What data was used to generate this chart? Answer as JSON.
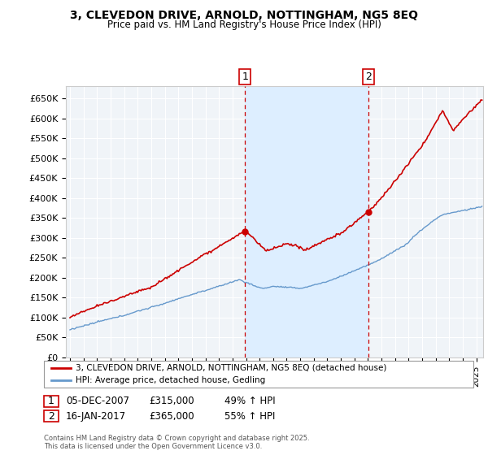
{
  "title": "3, CLEVEDON DRIVE, ARNOLD, NOTTINGHAM, NG5 8EQ",
  "subtitle": "Price paid vs. HM Land Registry's House Price Index (HPI)",
  "ylim": [
    0,
    680000
  ],
  "yticks": [
    0,
    50000,
    100000,
    150000,
    200000,
    250000,
    300000,
    350000,
    400000,
    450000,
    500000,
    550000,
    600000,
    650000
  ],
  "ytick_labels": [
    "£0",
    "£50K",
    "£100K",
    "£150K",
    "£200K",
    "£250K",
    "£300K",
    "£350K",
    "£400K",
    "£450K",
    "£500K",
    "£550K",
    "£600K",
    "£650K"
  ],
  "sale1_date": 2007.92,
  "sale1_price": 315000,
  "sale1_text": "05-DEC-2007",
  "sale1_amount": "£315,000",
  "sale1_pct": "49% ↑ HPI",
  "sale2_date": 2017.04,
  "sale2_price": 365000,
  "sale2_text": "16-JAN-2017",
  "sale2_amount": "£365,000",
  "sale2_pct": "55% ↑ HPI",
  "line1_color": "#cc0000",
  "line2_color": "#6699cc",
  "shade_color": "#ddeeff",
  "marker_box_color": "#cc0000",
  "bg_color": "#f0f4f8",
  "legend1": "3, CLEVEDON DRIVE, ARNOLD, NOTTINGHAM, NG5 8EQ (detached house)",
  "legend2": "HPI: Average price, detached house, Gedling",
  "footer": "Contains HM Land Registry data © Crown copyright and database right 2025.\nThis data is licensed under the Open Government Licence v3.0.",
  "xlim_start": 1994.7,
  "xlim_end": 2025.5
}
